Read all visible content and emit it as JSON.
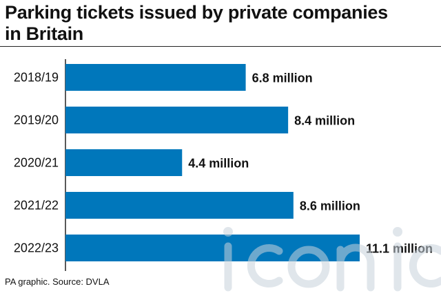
{
  "header": {
    "title_line1": "Parking tickets issued by private companies",
    "title_line2": "in Britain"
  },
  "footer": {
    "source": "PA graphic. Source: DVLA"
  },
  "watermark": {
    "text": "iconic"
  },
  "colors": {
    "bar": "#0077bb",
    "text": "#111111",
    "axis": "#222222"
  },
  "chart_data": {
    "type": "bar",
    "orientation": "horizontal",
    "title": "Parking tickets issued by private companies in Britain",
    "categories": [
      "2018/19",
      "2019/20",
      "2020/21",
      "2021/22",
      "2022/23"
    ],
    "values": [
      6.8,
      8.4,
      4.4,
      8.6,
      11.1
    ],
    "unit": "million",
    "value_labels": [
      "6.8 million",
      "8.4 million",
      "4.4 million",
      "8.6 million",
      "11.1 million"
    ],
    "xlim": [
      0,
      11.1
    ],
    "grid": false,
    "legend": "none"
  }
}
